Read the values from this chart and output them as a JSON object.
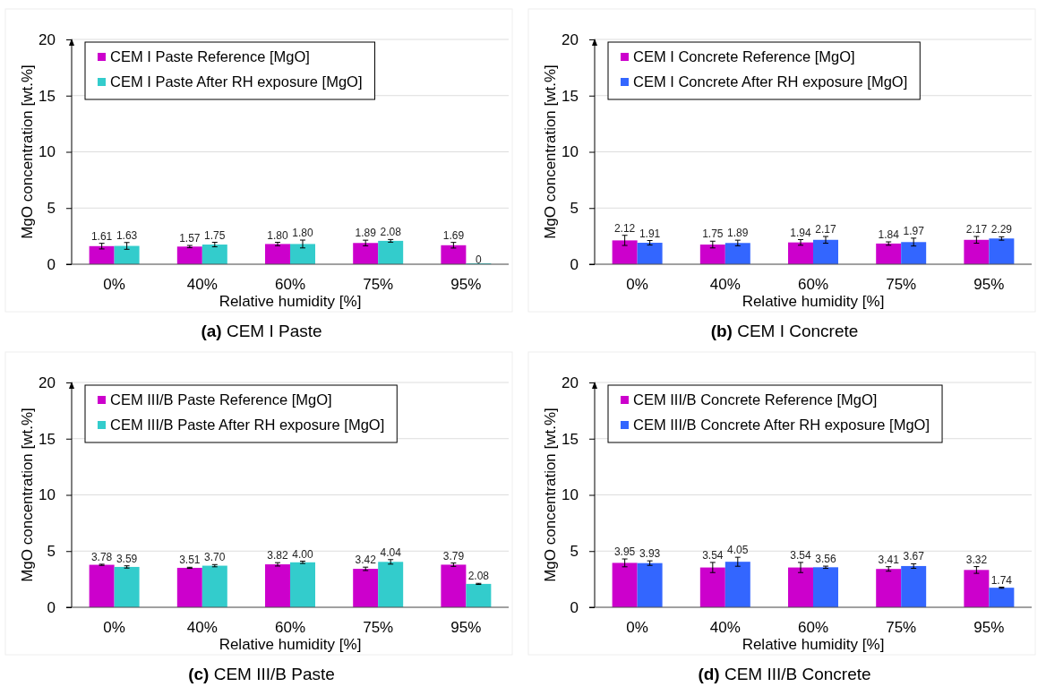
{
  "chart_data": [
    {
      "type": "bar",
      "title": "(a) CEM I Paste",
      "xlabel": "Relative humidity [%]",
      "ylabel": "MgO concentration [wt.%]",
      "categories": [
        "0%",
        "40%",
        "60%",
        "75%",
        "95%"
      ],
      "ylim": [
        0,
        20
      ],
      "yticks": [
        0,
        5,
        10,
        15,
        20
      ],
      "grid": "y",
      "legend": "top left",
      "series": [
        {
          "name": "CEM I Paste Reference [MgO]",
          "color": "#cc00cc",
          "values": [
            1.61,
            1.57,
            1.8,
            1.89,
            1.69
          ],
          "errors": [
            0.25,
            0.1,
            0.15,
            0.25,
            0.25
          ],
          "value_labels": [
            "1.61",
            "1.57",
            "1.80",
            "1.89",
            "1.69"
          ]
        },
        {
          "name": "CEM I Paste After RH exposure [MgO]",
          "color": "#33cccc",
          "values": [
            1.63,
            1.75,
            1.8,
            2.08,
            0
          ],
          "errors": [
            0.3,
            0.2,
            0.35,
            0.12,
            null
          ],
          "value_labels": [
            "1.63",
            "1.75",
            "1.80",
            "2.08",
            "0"
          ]
        }
      ]
    },
    {
      "type": "bar",
      "title": "(b) CEM I Concrete",
      "xlabel": "Relative humidity [%]",
      "ylabel": "MgO concentration [wt.%]",
      "categories": [
        "0%",
        "40%",
        "60%",
        "75%",
        "95%"
      ],
      "ylim": [
        0,
        20
      ],
      "yticks": [
        0,
        5,
        10,
        15,
        20
      ],
      "grid": "y",
      "legend": "top left",
      "series": [
        {
          "name": "CEM I Concrete Reference [MgO]",
          "color": "#cc00cc",
          "values": [
            2.12,
            1.75,
            1.94,
            1.84,
            2.17
          ],
          "errors": [
            0.45,
            0.3,
            0.25,
            0.15,
            0.3
          ],
          "value_labels": [
            "2.12",
            "1.75",
            "1.94",
            "1.84",
            "2.17"
          ]
        },
        {
          "name": "CEM I Concrete After RH exposure [MgO]",
          "color": "#3366ff",
          "values": [
            1.91,
            1.89,
            2.17,
            1.97,
            2.29
          ],
          "errors": [
            0.2,
            0.25,
            0.3,
            0.35,
            0.15
          ],
          "value_labels": [
            "1.91",
            "1.89",
            "2.17",
            "1.97",
            "2.29"
          ]
        }
      ]
    },
    {
      "type": "bar",
      "title": "(c) CEM III/B Paste",
      "xlabel": "Relative humidity [%]",
      "ylabel": "MgO concentration [wt.%]",
      "categories": [
        "0%",
        "40%",
        "60%",
        "75%",
        "95%"
      ],
      "ylim": [
        0,
        20
      ],
      "yticks": [
        0,
        5,
        10,
        15,
        20
      ],
      "grid": "y",
      "legend": "top left",
      "series": [
        {
          "name": "CEM III/B Paste Reference [MgO]",
          "color": "#cc00cc",
          "values": [
            3.78,
            3.51,
            3.82,
            3.42,
            3.79
          ],
          "errors": [
            0.05,
            0.05,
            0.15,
            0.15,
            0.15
          ],
          "value_labels": [
            "3.78",
            "3.51",
            "3.82",
            "3.42",
            "3.79"
          ]
        },
        {
          "name": "CEM III/B Paste After RH exposure [MgO]",
          "color": "#33cccc",
          "values": [
            3.59,
            3.7,
            4.0,
            4.04,
            2.08
          ],
          "errors": [
            0.1,
            0.1,
            0.1,
            0.2,
            0.05
          ],
          "value_labels": [
            "3.59",
            "3.70",
            "4.00",
            "4.04",
            "2.08"
          ]
        }
      ]
    },
    {
      "type": "bar",
      "title": "(d) CEM III/B Concrete",
      "xlabel": "Relative humidity [%]",
      "ylabel": "MgO concentration [wt.%]",
      "categories": [
        "0%",
        "40%",
        "60%",
        "75%",
        "95%"
      ],
      "ylim": [
        0,
        20
      ],
      "yticks": [
        0,
        5,
        10,
        15,
        20
      ],
      "grid": "y",
      "legend": "top left",
      "series": [
        {
          "name": "CEM III/B Concrete Reference [MgO]",
          "color": "#cc00cc",
          "values": [
            3.95,
            3.54,
            3.54,
            3.41,
            3.32
          ],
          "errors": [
            0.35,
            0.45,
            0.45,
            0.2,
            0.3
          ],
          "value_labels": [
            "3.95",
            "3.54",
            "3.54",
            "3.41",
            "3.32"
          ]
        },
        {
          "name": "CEM III/B Concrete After RH exposure [MgO]",
          "color": "#3366ff",
          "values": [
            3.93,
            4.05,
            3.56,
            3.67,
            1.74
          ],
          "errors": [
            0.2,
            0.4,
            0.1,
            0.2,
            0.05
          ],
          "value_labels": [
            "3.93",
            "4.05",
            "3.56",
            "3.67",
            "1.74"
          ]
        }
      ]
    }
  ]
}
